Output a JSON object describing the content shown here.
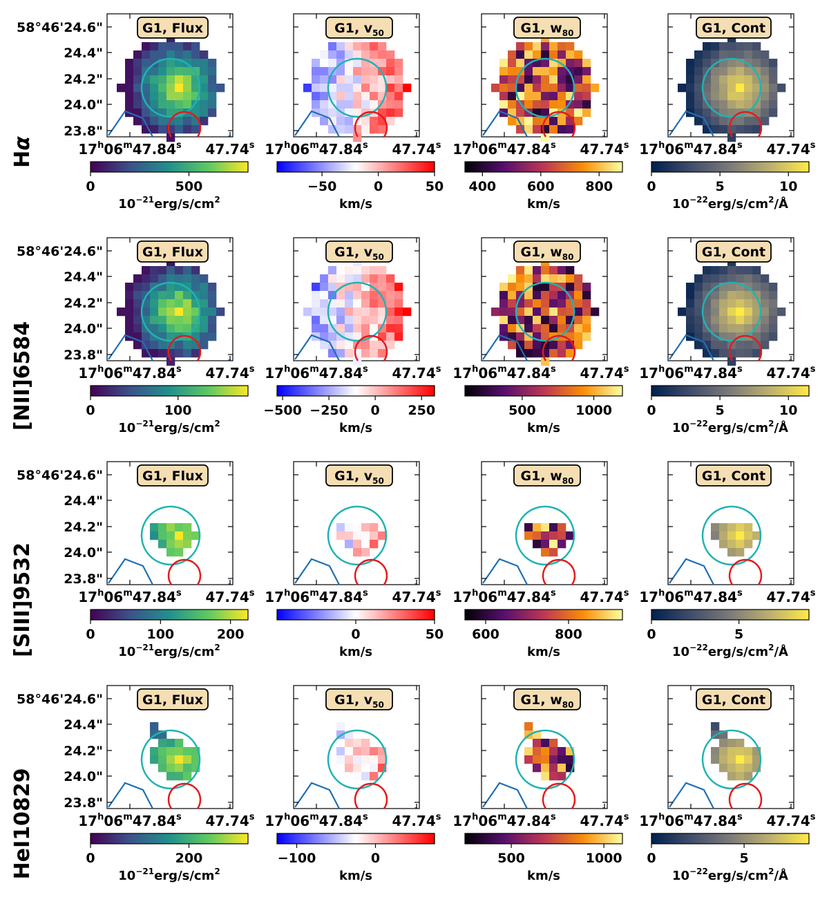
{
  "chart_data": {
    "type": "heatmap",
    "x_ticks": {
      "left_label": "17h06m47.84s",
      "right_label": "47.74s",
      "left_sup": [
        "h",
        "m",
        "s"
      ],
      "parts_left": [
        "17",
        "h",
        "06",
        "m",
        "47.84",
        "s"
      ],
      "parts_right": [
        "47.74",
        "s"
      ]
    },
    "y_ticks": [
      "58°46'24.6\"",
      "24.4\"",
      "24.2\"",
      "24.0\"",
      "23.8\""
    ],
    "rows": [
      {
        "label": "Hα",
        "label_main": "H",
        "label_greek": "α"
      },
      {
        "label": "[NII]6584"
      },
      {
        "label": "[SIII]9532"
      },
      {
        "label": "HeI10829"
      }
    ],
    "columns": [
      {
        "key": "flux",
        "title_main": "G1, Flux",
        "title_sub": "",
        "cmap": "viridis"
      },
      {
        "key": "v50",
        "title_main": "G1, v",
        "title_sub": "50",
        "cmap": "bwr"
      },
      {
        "key": "w80",
        "title_main": "G1, w",
        "title_sub": "80",
        "cmap": "inferno"
      },
      {
        "key": "cont",
        "title_main": "G1, Cont",
        "title_sub": "",
        "cmap": "cividis"
      }
    ],
    "colorbars": [
      [
        {
          "min": 0,
          "max": 800,
          "ticks": [
            0,
            500
          ],
          "tick_labels": [
            "0",
            "500"
          ],
          "unit_pre": "10",
          "unit_exp": "−21",
          "unit_post": "erg/s/cm",
          "unit_post_exp": "2",
          "unit_tail": ""
        },
        {
          "min": -90,
          "max": 50,
          "ticks": [
            -50,
            0,
            50
          ],
          "tick_labels": [
            "−50",
            "0",
            "50"
          ],
          "unit": "km/s"
        },
        {
          "min": 340,
          "max": 880,
          "ticks": [
            400,
            600,
            800
          ],
          "tick_labels": [
            "400",
            "600",
            "800"
          ],
          "unit": "km/s"
        },
        {
          "min": 0,
          "max": 11.5,
          "ticks": [
            0,
            5,
            10
          ],
          "tick_labels": [
            "0",
            "5",
            "10"
          ],
          "unit_pre": "10",
          "unit_exp": "−22",
          "unit_post": "erg/s/cm",
          "unit_post_exp": "2",
          "unit_tail": "/Å"
        }
      ],
      [
        {
          "min": 0,
          "max": 180,
          "ticks": [
            0,
            100
          ],
          "tick_labels": [
            "0",
            "100"
          ],
          "unit_pre": "10",
          "unit_exp": "−21",
          "unit_post": "erg/s/cm",
          "unit_post_exp": "2",
          "unit_tail": ""
        },
        {
          "min": -530,
          "max": 320,
          "ticks": [
            -500,
            -250,
            0,
            250
          ],
          "tick_labels": [
            "−500",
            "−250",
            "0",
            "250"
          ],
          "unit": "km/s"
        },
        {
          "min": 100,
          "max": 1200,
          "ticks": [
            500,
            1000
          ],
          "tick_labels": [
            "500",
            "1000"
          ],
          "unit": "km/s"
        },
        {
          "min": 0,
          "max": 11.5,
          "ticks": [
            0,
            5,
            10
          ],
          "tick_labels": [
            "0",
            "5",
            "10"
          ],
          "unit_pre": "10",
          "unit_exp": "−22",
          "unit_post": "erg/s/cm",
          "unit_post_exp": "2",
          "unit_tail": "/Å"
        }
      ],
      [
        {
          "min": 0,
          "max": 225,
          "ticks": [
            0,
            100,
            200
          ],
          "tick_labels": [
            "0",
            "100",
            "200"
          ],
          "unit_pre": "10",
          "unit_exp": "−21",
          "unit_post": "erg/s/cm",
          "unit_post_exp": "2",
          "unit_tail": ""
        },
        {
          "min": -50,
          "max": 50,
          "ticks": [
            0,
            50
          ],
          "tick_labels": [
            "0",
            "50"
          ],
          "unit": "km/s"
        },
        {
          "min": 550,
          "max": 930,
          "ticks": [
            600,
            800
          ],
          "tick_labels": [
            "600",
            "800"
          ],
          "unit": "km/s"
        },
        {
          "min": 0,
          "max": 9,
          "ticks": [
            0,
            5
          ],
          "tick_labels": [
            "0",
            "5"
          ],
          "unit_pre": "10",
          "unit_exp": "−22",
          "unit_post": "erg/s/cm",
          "unit_post_exp": "2",
          "unit_tail": "/Å"
        }
      ],
      [
        {
          "min": 0,
          "max": 320,
          "ticks": [
            0,
            200
          ],
          "tick_labels": [
            "0",
            "200"
          ],
          "unit_pre": "10",
          "unit_exp": "−21",
          "unit_post": "erg/s/cm",
          "unit_post_exp": "2",
          "unit_tail": ""
        },
        {
          "min": -125,
          "max": 75,
          "ticks": [
            -100,
            0
          ],
          "tick_labels": [
            "−100",
            "0"
          ],
          "unit": "km/s"
        },
        {
          "min": 250,
          "max": 1100,
          "ticks": [
            500,
            1000
          ],
          "tick_labels": [
            "500",
            "1000"
          ],
          "unit": "km/s"
        },
        {
          "min": 0,
          "max": 8.5,
          "ticks": [
            0,
            5
          ],
          "tick_labels": [
            "0",
            "5"
          ],
          "unit_pre": "10",
          "unit_exp": "−22",
          "unit_post": "erg/s/cm",
          "unit_post_exp": "2",
          "unit_tail": "/Å"
        }
      ]
    ],
    "colors": {
      "aperture": "#1fb3b3",
      "nucleus": "#e41a1c",
      "contour": "#1f6fb5",
      "label_box": "#f5deb3"
    }
  }
}
